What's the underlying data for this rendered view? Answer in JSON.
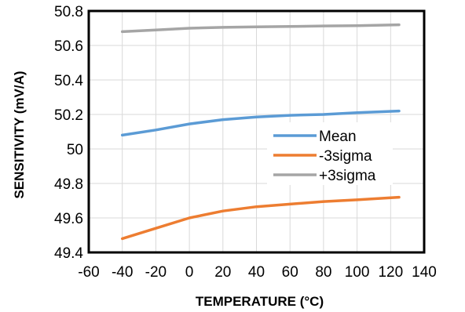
{
  "chart_data": {
    "type": "line",
    "xlabel": "TEMPERATURE (°C)",
    "ylabel": "SENSITIVITY (mV/A)",
    "xlim": [
      -60,
      140
    ],
    "ylim": [
      49.4,
      50.8
    ],
    "x_ticks": [
      -60,
      -40,
      -20,
      0,
      20,
      40,
      60,
      80,
      100,
      120,
      140
    ],
    "y_ticks": [
      49.4,
      49.6,
      49.8,
      50,
      50.2,
      50.4,
      50.6,
      50.8
    ],
    "x_tick_labels": [
      "-60",
      "-40",
      "-20",
      "0",
      "20",
      "40",
      "60",
      "80",
      "100",
      "120",
      "140"
    ],
    "y_tick_labels": [
      "49.4",
      "49.6",
      "49.8",
      "50",
      "50.2",
      "50.4",
      "50.6",
      "50.8"
    ],
    "grid": true,
    "legend_position": "right",
    "series": [
      {
        "name": "Mean",
        "color": "#5B9BD5",
        "x": [
          -40,
          -20,
          0,
          20,
          40,
          60,
          80,
          100,
          125
        ],
        "y": [
          50.08,
          50.11,
          50.145,
          50.17,
          50.185,
          50.195,
          50.2,
          50.21,
          50.22
        ]
      },
      {
        "name": "-3sigma",
        "color": "#ED7D31",
        "x": [
          -40,
          -20,
          0,
          20,
          40,
          60,
          80,
          100,
          125
        ],
        "y": [
          49.48,
          49.54,
          49.6,
          49.64,
          49.665,
          49.68,
          49.695,
          49.705,
          49.72
        ]
      },
      {
        "name": "+3sigma",
        "color": "#A5A5A5",
        "x": [
          -40,
          -20,
          0,
          20,
          40,
          60,
          80,
          100,
          125
        ],
        "y": [
          50.68,
          50.69,
          50.7,
          50.705,
          50.708,
          50.71,
          50.713,
          50.715,
          50.72
        ]
      }
    ]
  }
}
